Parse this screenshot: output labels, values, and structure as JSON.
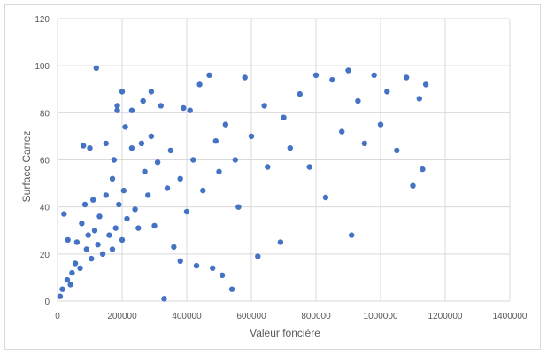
{
  "chart_data": {
    "type": "scatter",
    "title": "",
    "xlabel": "Valeur foncière",
    "ylabel": "Surface Carrez",
    "xlim": [
      0,
      1400000
    ],
    "ylim": [
      0,
      120
    ],
    "x_ticks": [
      0,
      200000,
      400000,
      600000,
      800000,
      1000000,
      1200000,
      1400000
    ],
    "y_ticks": [
      0,
      20,
      40,
      60,
      80,
      100,
      120
    ],
    "x_tick_labels": [
      "0",
      "200000",
      "400000",
      "600000",
      "800000",
      "1000000",
      "1200000",
      "1400000"
    ],
    "y_tick_labels": [
      "0",
      "20",
      "40",
      "60",
      "80",
      "100",
      "120"
    ],
    "grid": true,
    "legend": "none",
    "marker_color": "#4472c4",
    "series": [
      {
        "values_xy": [
          [
            8000,
            2
          ],
          [
            15000,
            5
          ],
          [
            20000,
            37
          ],
          [
            30000,
            9
          ],
          [
            32000,
            26
          ],
          [
            40000,
            7
          ],
          [
            45000,
            12
          ],
          [
            55000,
            16
          ],
          [
            60000,
            25
          ],
          [
            70000,
            14
          ],
          [
            75000,
            33
          ],
          [
            80000,
            66
          ],
          [
            85000,
            41
          ],
          [
            90000,
            22
          ],
          [
            95000,
            28
          ],
          [
            100000,
            65
          ],
          [
            105000,
            18
          ],
          [
            110000,
            43
          ],
          [
            115000,
            30
          ],
          [
            120000,
            99
          ],
          [
            125000,
            24
          ],
          [
            130000,
            36
          ],
          [
            140000,
            20
          ],
          [
            150000,
            67
          ],
          [
            150000,
            45
          ],
          [
            160000,
            28
          ],
          [
            170000,
            52
          ],
          [
            170000,
            22
          ],
          [
            175000,
            60
          ],
          [
            180000,
            31
          ],
          [
            185000,
            83
          ],
          [
            185000,
            81
          ],
          [
            190000,
            41
          ],
          [
            200000,
            89
          ],
          [
            200000,
            26
          ],
          [
            205000,
            47
          ],
          [
            210000,
            74
          ],
          [
            215000,
            35
          ],
          [
            230000,
            81
          ],
          [
            230000,
            65
          ],
          [
            240000,
            39
          ],
          [
            250000,
            31
          ],
          [
            260000,
            67
          ],
          [
            265000,
            85
          ],
          [
            270000,
            55
          ],
          [
            280000,
            45
          ],
          [
            290000,
            89
          ],
          [
            290000,
            70
          ],
          [
            300000,
            32
          ],
          [
            310000,
            59
          ],
          [
            320000,
            83
          ],
          [
            330000,
            1
          ],
          [
            340000,
            48
          ],
          [
            350000,
            64
          ],
          [
            360000,
            23
          ],
          [
            380000,
            52
          ],
          [
            380000,
            17
          ],
          [
            390000,
            82
          ],
          [
            400000,
            38
          ],
          [
            410000,
            81
          ],
          [
            420000,
            60
          ],
          [
            430000,
            15
          ],
          [
            440000,
            92
          ],
          [
            450000,
            47
          ],
          [
            470000,
            96
          ],
          [
            480000,
            14
          ],
          [
            490000,
            68
          ],
          [
            500000,
            55
          ],
          [
            510000,
            11
          ],
          [
            520000,
            75
          ],
          [
            540000,
            5
          ],
          [
            550000,
            60
          ],
          [
            560000,
            40
          ],
          [
            580000,
            95
          ],
          [
            600000,
            70
          ],
          [
            620000,
            19
          ],
          [
            640000,
            83
          ],
          [
            650000,
            57
          ],
          [
            690000,
            25
          ],
          [
            700000,
            78
          ],
          [
            720000,
            65
          ],
          [
            750000,
            88
          ],
          [
            780000,
            57
          ],
          [
            800000,
            96
          ],
          [
            830000,
            44
          ],
          [
            850000,
            94
          ],
          [
            880000,
            72
          ],
          [
            900000,
            98
          ],
          [
            910000,
            28
          ],
          [
            930000,
            85
          ],
          [
            950000,
            67
          ],
          [
            980000,
            96
          ],
          [
            1000000,
            75
          ],
          [
            1020000,
            89
          ],
          [
            1050000,
            64
          ],
          [
            1080000,
            95
          ],
          [
            1100000,
            49
          ],
          [
            1120000,
            86
          ],
          [
            1130000,
            56
          ],
          [
            1140000,
            92
          ]
        ]
      }
    ]
  }
}
